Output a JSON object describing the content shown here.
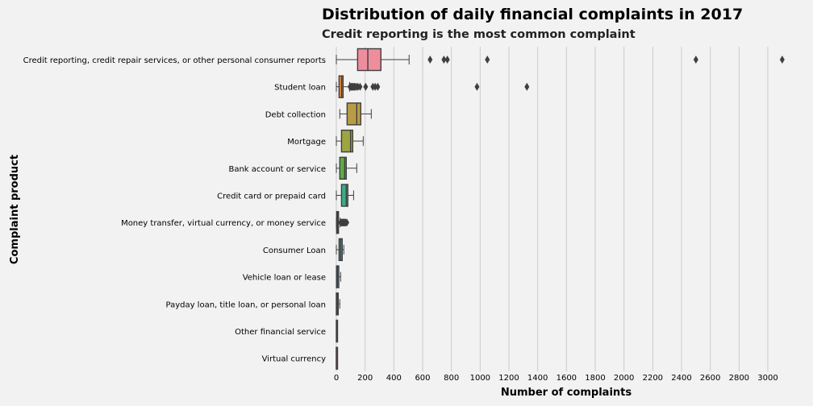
{
  "chart_data": {
    "type": "boxplot",
    "orientation": "horizontal",
    "title": "Distribution of daily financial complaints in 2017",
    "subtitle": "Credit reporting is the most common complaint",
    "xlabel": "Number of complaints",
    "ylabel": "Complaint product",
    "xlim": [
      0,
      3300
    ],
    "xticks": [
      0,
      200,
      400,
      600,
      800,
      1000,
      1200,
      1400,
      1600,
      1800,
      2000,
      2200,
      2400,
      2600,
      2800,
      3000
    ],
    "grid": "vertical",
    "categories": [
      {
        "name": "Credit reporting, credit repair services, or other personal consumer reports",
        "color": "#ee8e9c",
        "lo": 0,
        "q1": 148,
        "med": 219,
        "q3": 310,
        "hi": 506,
        "outliers": [
          652,
          748,
          772,
          1050,
          2500,
          3100
        ]
      },
      {
        "name": "Student loan",
        "color": "#e08a3e",
        "lo": 0,
        "q1": 19,
        "med": 37,
        "q3": 47,
        "hi": 92,
        "outliers": [
          95,
          100,
          105,
          110,
          115,
          120,
          125,
          130,
          140,
          150,
          165,
          204,
          254,
          270,
          288,
          978,
          1325
        ]
      },
      {
        "name": "Debt collection",
        "color": "#b89c45",
        "lo": 24,
        "q1": 75,
        "med": 142,
        "q3": 170,
        "hi": 243,
        "outliers": []
      },
      {
        "name": "Mortgage",
        "color": "#9da543",
        "lo": 0,
        "q1": 36,
        "med": 99,
        "q3": 114,
        "hi": 187,
        "outliers": []
      },
      {
        "name": "Bank account or service",
        "color": "#5aad45",
        "lo": 0,
        "q1": 24,
        "med": 58,
        "q3": 69,
        "hi": 142,
        "outliers": []
      },
      {
        "name": "Credit card or prepaid card",
        "color": "#3bad87",
        "lo": 0,
        "q1": 36,
        "med": 69,
        "q3": 80,
        "hi": 120,
        "outliers": []
      },
      {
        "name": "Money transfer, virtual currency, or money service",
        "color": "#3aab9e",
        "lo": 0,
        "q1": 2,
        "med": 8,
        "q3": 15,
        "hi": 26,
        "outliers": [
          30,
          35,
          40,
          45,
          50,
          55,
          60,
          65,
          73
        ]
      },
      {
        "name": "Consumer Loan",
        "color": "#3aa7b6",
        "lo": 0,
        "q1": 19,
        "med": 30,
        "q3": 41,
        "hi": 52,
        "outliers": []
      },
      {
        "name": "Vehicle loan or lease",
        "color": "#5b9ed6",
        "lo": 1,
        "q1": 1,
        "med": 8,
        "q3": 17,
        "hi": 30,
        "outliers": []
      },
      {
        "name": "Payday loan, title loan, or personal loan",
        "color": "#9c8fe0",
        "lo": 0,
        "q1": 0,
        "med": 7,
        "q3": 13,
        "hi": 24,
        "outliers": []
      },
      {
        "name": "Other financial service",
        "color": "#d47fd6",
        "lo": 0,
        "q1": 0,
        "med": 2,
        "q3": 5,
        "hi": 5,
        "outliers": []
      },
      {
        "name": "Virtual currency",
        "color": "#ec7fb3",
        "lo": 0,
        "q1": 0,
        "med": 0,
        "q3": 1,
        "hi": 2,
        "outliers": []
      }
    ]
  }
}
